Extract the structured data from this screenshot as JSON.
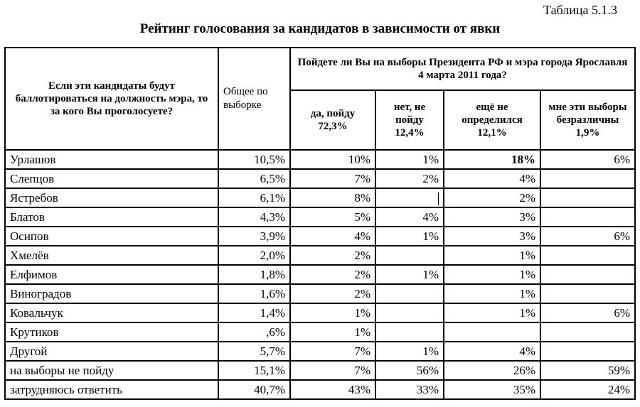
{
  "table_number": "Таблица 5.1.3",
  "title": "Рейтинг голосования за кандидатов в зависимости от явки",
  "header": {
    "question": "Если эти кандидаты будут баллотироваться на должность мэра, то за кого Вы проголосуете?",
    "total": "Общее по выборке",
    "group": "Пойдете ли Вы на выборы Президента РФ и мэра города Ярославля 4 марта 2011 года?",
    "sub": [
      "да, пойду 72,3%",
      "нет, не пойду 12,4%",
      "ещё не определился 12,1%",
      "мне эти выборы безразличны 1,9%"
    ]
  },
  "rows": [
    {
      "name": "Урлашов",
      "total": "10,5%",
      "yes": "10%",
      "no": "1%",
      "undecided": "18%",
      "indifferent": "6%"
    },
    {
      "name": "Слепцов",
      "total": "6,5%",
      "yes": "7%",
      "no": "2%",
      "undecided": "4%",
      "indifferent": ""
    },
    {
      "name": "Ястребов",
      "total": "6,1%",
      "yes": "8%",
      "no": "",
      "undecided": "2%",
      "indifferent": ""
    },
    {
      "name": "Блатов",
      "total": "4,3%",
      "yes": "5%",
      "no": "4%",
      "undecided": "3%",
      "indifferent": ""
    },
    {
      "name": "Осипов",
      "total": "3,9%",
      "yes": "4%",
      "no": "1%",
      "undecided": "3%",
      "indifferent": "6%"
    },
    {
      "name": "Хмелёв",
      "total": "2,0%",
      "yes": "2%",
      "no": "",
      "undecided": "1%",
      "indifferent": ""
    },
    {
      "name": "Елфимов",
      "total": "1,8%",
      "yes": "2%",
      "no": "1%",
      "undecided": "1%",
      "indifferent": ""
    },
    {
      "name": "Виноградов",
      "total": "1,6%",
      "yes": "2%",
      "no": "",
      "undecided": "1%",
      "indifferent": ""
    },
    {
      "name": "Ковальчук",
      "total": "1,4%",
      "yes": "1%",
      "no": "",
      "undecided": "1%",
      "indifferent": "6%"
    },
    {
      "name": "Крутиков",
      "total": ",6%",
      "yes": "1%",
      "no": "",
      "undecided": "",
      "indifferent": ""
    },
    {
      "name": "Другой",
      "total": "5,7%",
      "yes": "7%",
      "no": "1%",
      "undecided": "4%",
      "indifferent": ""
    },
    {
      "name": "на выборы не пойду",
      "total": "15,1%",
      "yes": "7%",
      "no": "56%",
      "undecided": "26%",
      "indifferent": "59%"
    },
    {
      "name": "затрудняюсь ответить",
      "total": "40,7%",
      "yes": "43%",
      "no": "33%",
      "undecided": "35%",
      "indifferent": "24%"
    }
  ]
}
